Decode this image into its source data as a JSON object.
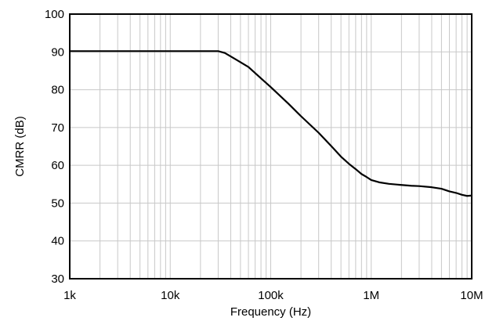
{
  "chart_data": {
    "type": "line",
    "xlabel": "Frequency (Hz)",
    "ylabel": "CMRR (dB)",
    "x_scale": "log",
    "xlim": [
      1000,
      10000000
    ],
    "ylim": [
      30,
      100
    ],
    "grid": true,
    "x_ticks": [
      {
        "value": 1000,
        "label": "1k"
      },
      {
        "value": 10000,
        "label": "10k"
      },
      {
        "value": 100000,
        "label": "100k"
      },
      {
        "value": 1000000,
        "label": "1M"
      },
      {
        "value": 10000000,
        "label": "10M"
      }
    ],
    "y_ticks": [
      {
        "value": 30,
        "label": "30"
      },
      {
        "value": 40,
        "label": "40"
      },
      {
        "value": 50,
        "label": "50"
      },
      {
        "value": 60,
        "label": "60"
      },
      {
        "value": 70,
        "label": "70"
      },
      {
        "value": 80,
        "label": "80"
      },
      {
        "value": 90,
        "label": "90"
      },
      {
        "value": 100,
        "label": "100"
      }
    ],
    "series": [
      {
        "x": [
          1000,
          10000,
          30000,
          35000,
          45000,
          60000,
          80000,
          100000,
          150000,
          200000,
          300000,
          400000,
          500000,
          600000,
          700000,
          800000,
          900000,
          1000000,
          1200000,
          1500000,
          2000000,
          2500000,
          3000000,
          4000000,
          5000000,
          6000000,
          7000000,
          8000000,
          9000000,
          10000000
        ],
        "y": [
          90.2,
          90.2,
          90.2,
          89.7,
          88,
          86,
          83,
          80.7,
          76.3,
          73,
          68.6,
          65.1,
          62.3,
          60.4,
          59,
          57.7,
          56.9,
          56.1,
          55.5,
          55.1,
          54.8,
          54.6,
          54.5,
          54.2,
          53.8,
          53.1,
          52.7,
          52.2,
          51.9,
          52
        ]
      }
    ],
    "colors": {
      "line": "#000000",
      "grid": "#c8c8c8",
      "frame": "#000000"
    }
  }
}
